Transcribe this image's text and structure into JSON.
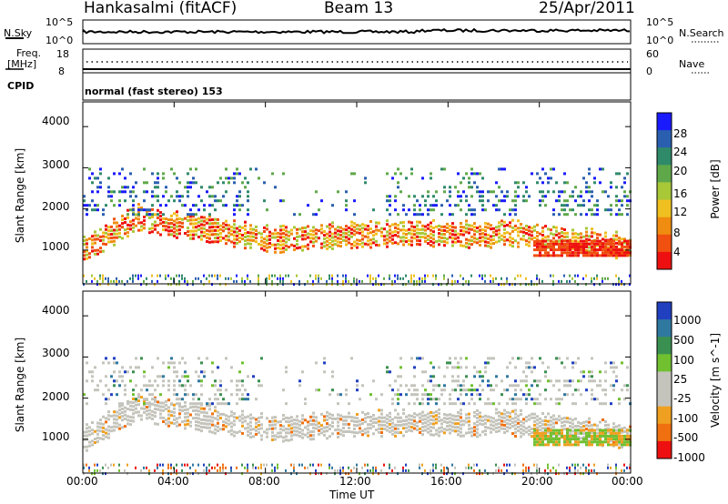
{
  "header": {
    "station": "Hankasalmi (fitACF)",
    "beam": "Beam 13",
    "date": "25/Apr/2011"
  },
  "panels": {
    "nsky_label": "N.Sky",
    "nsearch_label": "N.Search",
    "noise_tick_top": "10^5",
    "noise_tick_bottom": "10^0",
    "freq_label_1": "Freq.",
    "freq_label_2": "[MHz]",
    "freq_tick_top": "18",
    "freq_tick_bottom": "8",
    "nave_label": "Nave",
    "nave_tick_top": "60",
    "nave_tick_bottom": "0",
    "cpid_label": "CPID",
    "cpid_text": "normal (fast stereo) 153"
  },
  "chart_data": [
    {
      "type": "heatmap",
      "name": "power",
      "ylabel": "Slant Range [km]",
      "yticks": [
        "1000",
        "2000",
        "3000",
        "4000"
      ],
      "ylim": [
        180,
        4600
      ],
      "colorbar_label": "Power [dB]",
      "colorbar_ticks": [
        "4",
        "8",
        "12",
        "16",
        "20",
        "24",
        "28"
      ],
      "colorbar_colors": [
        "#1a1aff",
        "#2a5fb0",
        "#2f8a6a",
        "#5fa84a",
        "#a8c838",
        "#f0c020",
        "#f08c10",
        "#f05010",
        "#ee1010"
      ]
    },
    {
      "type": "heatmap",
      "name": "velocity",
      "ylabel": "Slant Range [km]",
      "yticks": [
        "1000",
        "2000",
        "3000",
        "4000"
      ],
      "ylim": [
        180,
        4600
      ],
      "colorbar_label": "Velocity [m s^-1]",
      "colorbar_ticks": [
        "1000",
        "500",
        "100",
        "25",
        "-25",
        "-100",
        "-500",
        "-1000"
      ],
      "colorbar_colors": [
        "#2040c0",
        "#2f78a0",
        "#3a9050",
        "#70c030",
        "#c4c4bc",
        "#c4c4bc",
        "#f0a020",
        "#f07010",
        "#ee1010"
      ]
    }
  ],
  "xaxis": {
    "label": "Time UT",
    "ticks": [
      "00:00",
      "04:00",
      "08:00",
      "12:00",
      "16:00",
      "20:00",
      "00:00"
    ]
  }
}
